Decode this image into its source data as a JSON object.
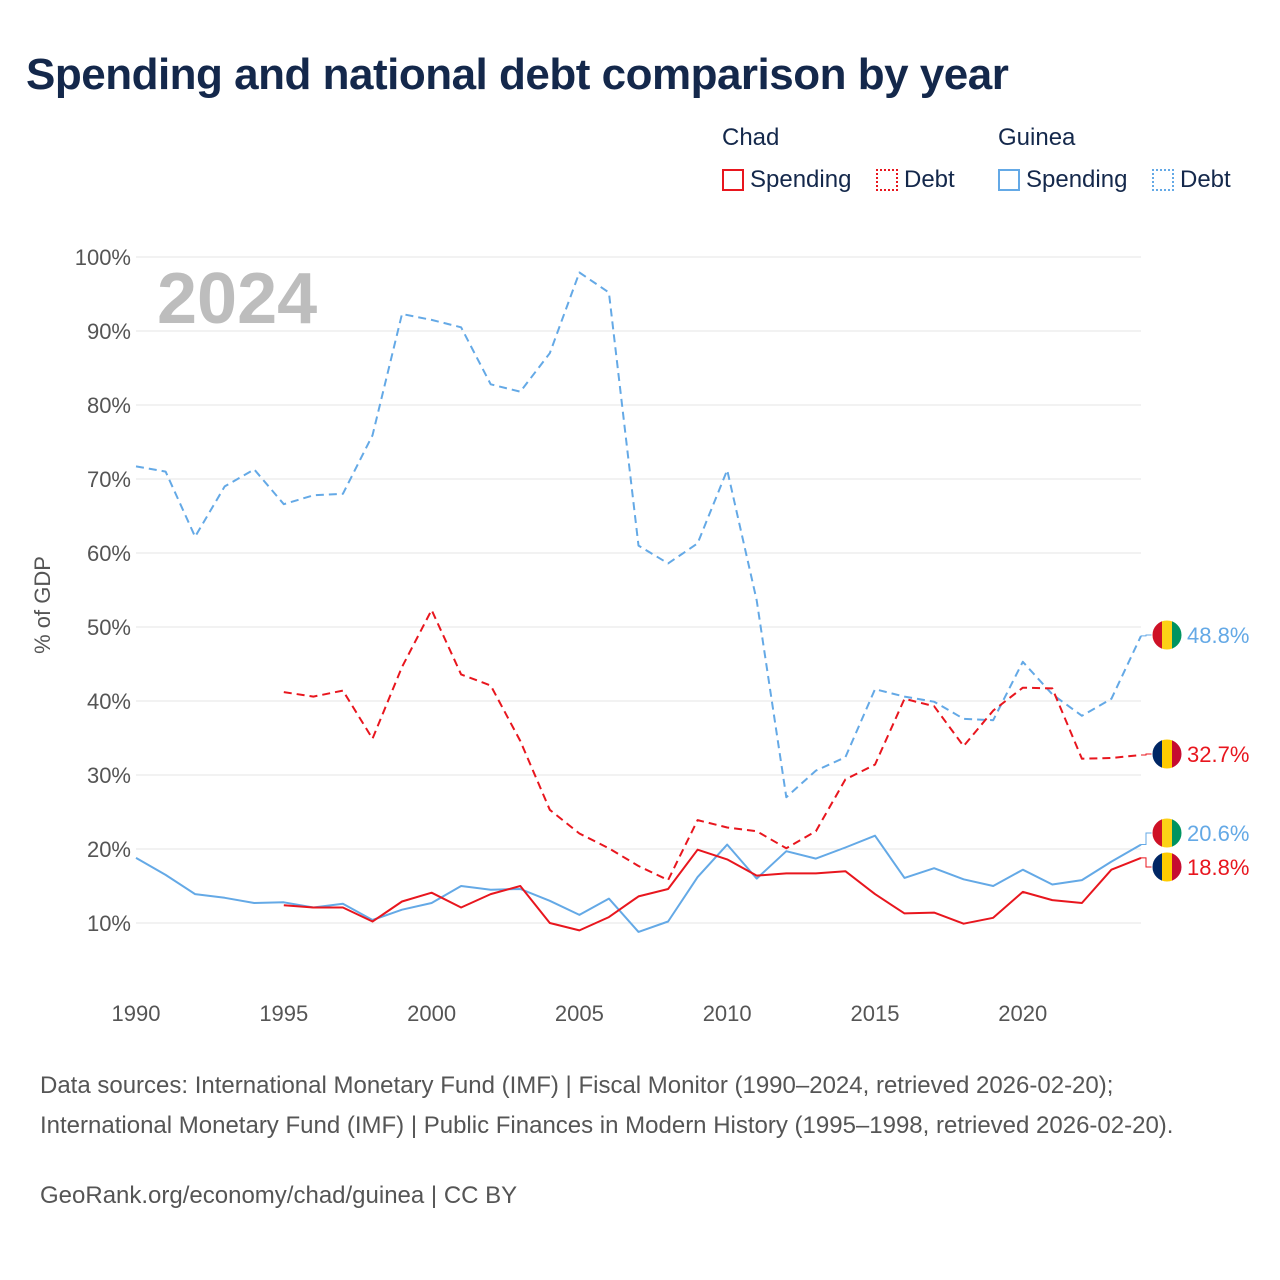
{
  "title": "Spending and national debt comparison by year",
  "legend": {
    "countries": [
      {
        "name": "Chad",
        "color": "#e8161e",
        "spending_label": "Spending",
        "debt_label": "Debt"
      },
      {
        "name": "Guinea",
        "color": "#64a9e6",
        "spending_label": "Spending",
        "debt_label": "Debt"
      }
    ]
  },
  "sources": "Data sources: International Monetary Fund (IMF) | Fiscal Monitor (1990–2024, retrieved 2026-02-20); International Monetary Fund (IMF) | Public Finances in Modern History (1995–1998, retrieved 2026-02-20).",
  "credit": "GeoRank.org/economy/chad/guinea | CC BY",
  "chart_data": {
    "type": "line",
    "year_label": "2024",
    "ylabel": "% of GDP",
    "xlim": [
      1990,
      2024
    ],
    "ylim": [
      0,
      100
    ],
    "x_ticks": [
      1990,
      1995,
      2000,
      2005,
      2010,
      2015,
      2020
    ],
    "y_ticks": [
      10,
      20,
      30,
      40,
      50,
      60,
      70,
      80,
      90,
      100
    ],
    "y_tick_labels": [
      "10%",
      "20%",
      "30%",
      "40%",
      "50%",
      "60%",
      "70%",
      "80%",
      "90%",
      "100%"
    ],
    "series": [
      {
        "name": "Guinea Debt",
        "country": "Guinea",
        "metric": "Debt",
        "style": "dashed",
        "color": "#64a9e6",
        "start_year": 1990,
        "values": [
          71.7,
          71.0,
          62.2,
          69.0,
          71.3,
          66.6,
          67.8,
          68.0,
          75.9,
          92.3,
          91.5,
          90.5,
          82.8,
          81.8,
          87.0,
          97.9,
          95.2,
          61.0,
          58.6,
          61.3,
          71.2,
          53.6,
          27.0,
          30.6,
          32.4,
          41.6,
          40.6,
          39.9,
          37.6,
          37.4,
          45.3,
          40.9,
          38.0,
          40.3,
          48.8
        ],
        "end_label": "48.8%"
      },
      {
        "name": "Chad Debt",
        "country": "Chad",
        "metric": "Debt",
        "style": "dashed",
        "color": "#e8161e",
        "start_year": 1995,
        "values": [
          41.2,
          40.6,
          41.4,
          34.9,
          44.6,
          52.3,
          43.6,
          42.1,
          34.6,
          25.3,
          22.1,
          20.1,
          17.7,
          15.8,
          23.9,
          22.9,
          22.4,
          20.1,
          22.4,
          29.4,
          31.4,
          40.3,
          39.3,
          33.9,
          38.7,
          41.8,
          41.7,
          32.2,
          32.3,
          32.7
        ],
        "end_label": "32.7%"
      },
      {
        "name": "Guinea Spending",
        "country": "Guinea",
        "metric": "Spending",
        "style": "solid",
        "color": "#64a9e6",
        "start_year": 1990,
        "values": [
          18.8,
          16.5,
          13.9,
          13.4,
          12.7,
          12.8,
          12.1,
          12.6,
          10.4,
          11.8,
          12.7,
          15.0,
          14.5,
          14.6,
          13.0,
          11.1,
          13.3,
          8.8,
          10.2,
          16.2,
          20.6,
          16.0,
          19.7,
          18.7,
          20.2,
          21.8,
          16.1,
          17.4,
          15.9,
          15.0,
          17.2,
          15.2,
          15.8,
          18.3,
          20.6
        ],
        "end_label": "20.6%"
      },
      {
        "name": "Chad Spending",
        "country": "Chad",
        "metric": "Spending",
        "style": "solid",
        "color": "#e8161e",
        "start_year": 1995,
        "values": [
          12.4,
          12.1,
          12.1,
          10.2,
          12.9,
          14.1,
          12.1,
          13.9,
          15.0,
          10.0,
          9.0,
          10.8,
          13.6,
          14.6,
          19.9,
          18.6,
          16.4,
          16.7,
          16.7,
          17.0,
          13.9,
          11.3,
          11.4,
          9.9,
          10.7,
          14.2,
          13.1,
          12.7,
          17.2,
          18.8
        ],
        "end_label": "18.8%"
      }
    ]
  }
}
